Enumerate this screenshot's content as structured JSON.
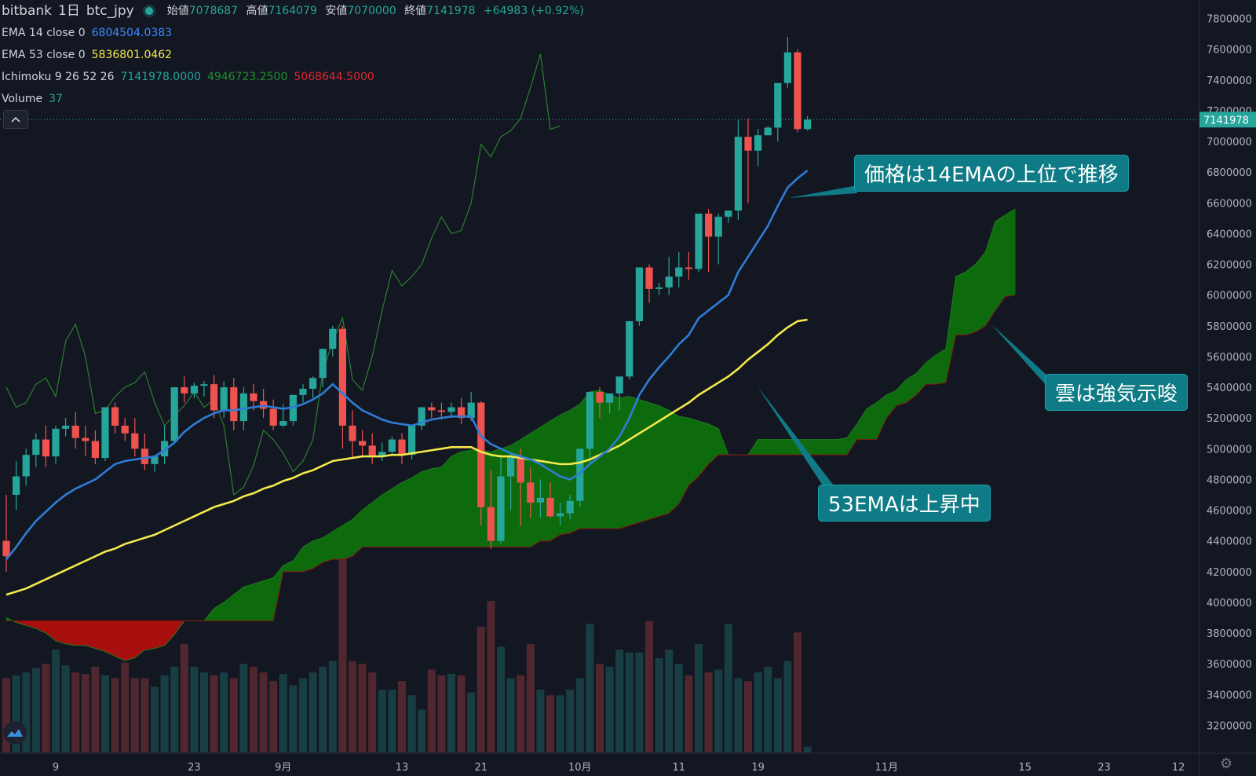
{
  "header": {
    "exchange": "bitbank",
    "interval": "1日",
    "symbol": "btc_jpy",
    "ohlc": [
      {
        "label": "始値",
        "value": "7078687"
      },
      {
        "label": "高値",
        "value": "7164079"
      },
      {
        "label": "安値",
        "value": "7070000"
      },
      {
        "label": "終値",
        "value": "7141978"
      }
    ],
    "change": "+64983 (+0.92%)"
  },
  "indicators": [
    {
      "label": "EMA 14 close 0",
      "values": [
        "6804504.0383"
      ],
      "colors": [
        "#3d8bfd"
      ]
    },
    {
      "label": "EMA 53 close 0",
      "values": [
        "5836801.0462"
      ],
      "colors": [
        "#f5e94b"
      ]
    },
    {
      "label": "Ichimoku 9 26 52 26",
      "values": [
        "7141978.0000",
        "4946723.2500",
        "5068644.5000"
      ],
      "colors": [
        "#26a69a",
        "#1f8f2f",
        "#e0262e"
      ]
    },
    {
      "label": "Volume",
      "values": [
        "37"
      ],
      "colors": [
        "#26a69a"
      ]
    }
  ],
  "collapse_icon": "chevron-up-icon",
  "settings_icon": "gear-icon",
  "logo_icon": "tradingview-logo-icon",
  "annotations": [
    {
      "text": "価格は14EMAの上位で推移"
    },
    {
      "text": "雲は強気示唆"
    },
    {
      "text": "53EMAは上昇中"
    }
  ],
  "colors": {
    "background": "#131722",
    "up": "#26a69a",
    "down": "#ef5350",
    "ema14": "#2f7dd6",
    "ema53": "#f5e94b",
    "cloud_bull": "#0d6b0d",
    "cloud_bear": "#a80f0f",
    "lagging": "#2e7d32",
    "callout": "#0f7b86"
  },
  "chart_data": {
    "type": "candlestick",
    "current_price_label": "7141978",
    "y_axis": {
      "range": [
        3100000,
        7900000
      ],
      "ticks": [
        "7800000",
        "7600000",
        "7400000",
        "7200000",
        "7000000",
        "6800000",
        "6600000",
        "6400000",
        "6200000",
        "6000000",
        "5800000",
        "5600000",
        "5400000",
        "5200000",
        "5000000",
        "4800000",
        "4600000",
        "4400000",
        "4200000",
        "4000000",
        "3800000",
        "3600000",
        "3400000",
        "3200000"
      ]
    },
    "x_axis": {
      "ticks": [
        {
          "label": "9",
          "bar": 5
        },
        {
          "label": "23",
          "bar": 19
        },
        {
          "label": "9月",
          "bar": 28
        },
        {
          "label": "13",
          "bar": 40
        },
        {
          "label": "21",
          "bar": 48
        },
        {
          "label": "10月",
          "bar": 58
        },
        {
          "label": "11",
          "bar": 68
        },
        {
          "label": "19",
          "bar": 76
        },
        {
          "label": "11月",
          "bar": 89
        },
        {
          "label": "15",
          "bar": 103
        },
        {
          "label": "23",
          "bar": 111
        },
        {
          "label": "12",
          "bar": 118.5
        }
      ]
    },
    "candles": [
      [
        4400000,
        4700000,
        4300000,
        4200000
      ],
      [
        4700000,
        4920000,
        4820000,
        4600000
      ],
      [
        4820000,
        5000000,
        4960000,
        4760000
      ],
      [
        4960000,
        5100000,
        5060000,
        4880000
      ],
      [
        5060000,
        5150000,
        4950000,
        4880000
      ],
      [
        4950000,
        5150000,
        5130000,
        4900000
      ],
      [
        5130000,
        5200000,
        5150000,
        5080000
      ],
      [
        5150000,
        5240000,
        5070000,
        5000000
      ],
      [
        5070000,
        5150000,
        5050000,
        4950000
      ],
      [
        5050000,
        5120000,
        4940000,
        4900000
      ],
      [
        4940000,
        5120000,
        5270000,
        4920000
      ],
      [
        5270000,
        5300000,
        5150000,
        5100000
      ],
      [
        5150000,
        5200000,
        5100000,
        5050000
      ],
      [
        5100000,
        5200000,
        5000000,
        4950000
      ],
      [
        5000000,
        5100000,
        4900000,
        4860000
      ],
      [
        4900000,
        4950000,
        4950000,
        4850000
      ],
      [
        4950000,
        5150000,
        5050000,
        4900000
      ],
      [
        5050000,
        5220000,
        5400000,
        5030000
      ],
      [
        5400000,
        5470000,
        5360000,
        5300000
      ],
      [
        5360000,
        5430000,
        5410000,
        5330000
      ],
      [
        5410000,
        5440000,
        5420000,
        5340000
      ],
      [
        5420000,
        5480000,
        5250000,
        5200000
      ],
      [
        5250000,
        5440000,
        5400000,
        5200000
      ],
      [
        5400000,
        5460000,
        5180000,
        5120000
      ],
      [
        5180000,
        5400000,
        5360000,
        5120000
      ],
      [
        5360000,
        5420000,
        5310000,
        5250000
      ],
      [
        5310000,
        5390000,
        5260000,
        5200000
      ],
      [
        5260000,
        5320000,
        5150000,
        5120000
      ],
      [
        5150000,
        5290000,
        5180000,
        5140000
      ],
      [
        5180000,
        5350000,
        5350000,
        5150000
      ],
      [
        5350000,
        5420000,
        5390000,
        5300000
      ],
      [
        5390000,
        5470000,
        5460000,
        5330000
      ],
      [
        5460000,
        5650000,
        5650000,
        5400000
      ],
      [
        5650000,
        5800000,
        5780000,
        5600000
      ],
      [
        5780000,
        5800000,
        5150000,
        5000000
      ],
      [
        5150000,
        5250000,
        5050000,
        4940000
      ],
      [
        5050000,
        5120000,
        5020000,
        4950000
      ],
      [
        5020000,
        5100000,
        4950000,
        4900000
      ],
      [
        4950000,
        5040000,
        4980000,
        4920000
      ],
      [
        4980000,
        5080000,
        5060000,
        4960000
      ],
      [
        5060000,
        5100000,
        4960000,
        4900000
      ],
      [
        4960000,
        4990000,
        5150000,
        4930000
      ],
      [
        5150000,
        5250000,
        5270000,
        5120000
      ],
      [
        5270000,
        5300000,
        5250000,
        5200000
      ],
      [
        5250000,
        5300000,
        5240000,
        5190000
      ],
      [
        5240000,
        5300000,
        5270000,
        5200000
      ],
      [
        5270000,
        5330000,
        5200000,
        5160000
      ],
      [
        5200000,
        5370000,
        5300000,
        5180000
      ],
      [
        5300000,
        5310000,
        4620000,
        4500000
      ],
      [
        4620000,
        4860000,
        4400000,
        4350000
      ],
      [
        4400000,
        4960000,
        4820000,
        4380000
      ],
      [
        4820000,
        4980000,
        4950000,
        4600000
      ],
      [
        4950000,
        5000000,
        4780000,
        4500000
      ],
      [
        4780000,
        4880000,
        4650000,
        4550000
      ],
      [
        4650000,
        4800000,
        4680000,
        4550000
      ],
      [
        4680000,
        4780000,
        4560000,
        4550000
      ],
      [
        4560000,
        4650000,
        4580000,
        4500000
      ],
      [
        4580000,
        4700000,
        4660000,
        4540000
      ],
      [
        4660000,
        4850000,
        5000000,
        4620000
      ],
      [
        5000000,
        5100000,
        5370000,
        4900000
      ],
      [
        5370000,
        5400000,
        5300000,
        5200000
      ],
      [
        5300000,
        5350000,
        5360000,
        5230000
      ],
      [
        5360000,
        5460000,
        5470000,
        5250000
      ],
      [
        5470000,
        5700000,
        5830000,
        5450000
      ],
      [
        5830000,
        6180000,
        6180000,
        5800000
      ],
      [
        6180000,
        6200000,
        6040000,
        5950000
      ],
      [
        6040000,
        6080000,
        6050000,
        6000000
      ],
      [
        6050000,
        6250000,
        6120000,
        6000000
      ],
      [
        6120000,
        6280000,
        6180000,
        6050000
      ],
      [
        6180000,
        6280000,
        6170000,
        6100000
      ],
      [
        6170000,
        6530000,
        6530000,
        6150000
      ],
      [
        6530000,
        6560000,
        6380000,
        6150000
      ],
      [
        6380000,
        6530000,
        6510000,
        6200000
      ],
      [
        6510000,
        6550000,
        6550000,
        6470000
      ],
      [
        6550000,
        7140000,
        7030000,
        6490000
      ],
      [
        7030000,
        7150000,
        6940000,
        6600000
      ],
      [
        6940000,
        7080000,
        7040000,
        6840000
      ],
      [
        7040000,
        7100000,
        7090000,
        7050000
      ],
      [
        7090000,
        7380000,
        7380000,
        7000000
      ],
      [
        7380000,
        7680000,
        7580000,
        7350000
      ],
      [
        7580000,
        7600000,
        7080000,
        7060000
      ],
      [
        7080000,
        7164079,
        7141978,
        7070000
      ]
    ],
    "ema14": [
      4280000,
      4360000,
      4450000,
      4530000,
      4590000,
      4650000,
      4700000,
      4740000,
      4770000,
      4800000,
      4850000,
      4900000,
      4920000,
      4930000,
      4940000,
      4950000,
      4990000,
      5040000,
      5110000,
      5160000,
      5200000,
      5230000,
      5250000,
      5250000,
      5260000,
      5270000,
      5280000,
      5270000,
      5260000,
      5270000,
      5290000,
      5320000,
      5360000,
      5420000,
      5360000,
      5300000,
      5250000,
      5220000,
      5190000,
      5170000,
      5160000,
      5150000,
      5170000,
      5190000,
      5200000,
      5210000,
      5210000,
      5210000,
      5080000,
      5030000,
      5000000,
      4970000,
      4950000,
      4930000,
      4900000,
      4860000,
      4820000,
      4800000,
      4840000,
      4900000,
      4950000,
      5000000,
      5080000,
      5200000,
      5350000,
      5450000,
      5530000,
      5600000,
      5680000,
      5740000,
      5850000,
      5900000,
      5950000,
      6000000,
      6150000,
      6250000,
      6350000,
      6450000,
      6580000,
      6700000,
      6760000,
      6810000
    ],
    "ema53": [
      4050000,
      4070000,
      4090000,
      4120000,
      4150000,
      4180000,
      4210000,
      4240000,
      4270000,
      4300000,
      4330000,
      4350000,
      4380000,
      4400000,
      4420000,
      4440000,
      4470000,
      4500000,
      4530000,
      4560000,
      4590000,
      4620000,
      4640000,
      4660000,
      4690000,
      4710000,
      4740000,
      4760000,
      4790000,
      4810000,
      4840000,
      4860000,
      4890000,
      4920000,
      4930000,
      4940000,
      4950000,
      4950000,
      4950000,
      4960000,
      4960000,
      4970000,
      4980000,
      4990000,
      5000000,
      5010000,
      5010000,
      5010000,
      4980000,
      4960000,
      4950000,
      4950000,
      4940000,
      4930000,
      4920000,
      4910000,
      4900000,
      4900000,
      4910000,
      4930000,
      4960000,
      4990000,
      5020000,
      5060000,
      5100000,
      5140000,
      5180000,
      5220000,
      5260000,
      5300000,
      5350000,
      5390000,
      5430000,
      5470000,
      5520000,
      5580000,
      5630000,
      5680000,
      5740000,
      5790000,
      5830000,
      5840000
    ],
    "lagging_span": [
      5400000,
      5270000,
      5300000,
      5420000,
      5460000,
      5340000,
      5700000,
      5810000,
      5600000,
      5230000,
      5250000,
      5340000,
      5400000,
      5430000,
      5500000,
      5300000,
      5150000,
      5220000,
      5280000,
      5370000,
      5270000,
      5320000,
      5150000,
      4700000,
      4750000,
      4890000,
      5120000,
      5060000,
      4970000,
      4850000,
      4920000,
      5060000,
      5500000,
      5700000,
      5850000,
      5450000,
      5380000,
      5600000,
      5900000,
      6160000,
      6060000,
      6120000,
      6200000,
      6370000,
      6510000,
      6400000,
      6420000,
      6600000,
      6980000,
      6900000,
      7030000,
      7070000,
      7150000,
      7350000,
      7570000,
      7080000,
      7100000
    ],
    "cloud": {
      "start_bar": 0,
      "span_a": [
        3900000,
        3870000,
        3850000,
        3830000,
        3800000,
        3750000,
        3730000,
        3720000,
        3720000,
        3700000,
        3680000,
        3650000,
        3620000,
        3640000,
        3690000,
        3700000,
        3720000,
        3790000,
        3880000,
        3880000,
        3880000,
        3960000,
        4000000,
        4050000,
        4100000,
        4120000,
        4140000,
        4160000,
        4240000,
        4270000,
        4360000,
        4400000,
        4420000,
        4460000,
        4500000,
        4540000,
        4600000,
        4650000,
        4700000,
        4740000,
        4780000,
        4810000,
        4850000,
        4870000,
        4880000,
        4950000,
        4980000,
        4990000,
        4990000,
        4980000,
        5000000,
        5020000,
        5060000,
        5100000,
        5140000,
        5180000,
        5220000,
        5250000,
        5290000,
        5370000,
        5380000,
        5350000,
        5330000,
        5340000,
        5320000,
        5300000,
        5280000,
        5250000,
        5210000,
        5200000,
        5180000,
        5160000,
        5130000,
        4960000,
        4960000,
        4960000,
        5060000,
        5060000,
        5060000,
        5060000,
        5060000,
        5060000,
        5060000,
        5060000,
        5060000,
        5070000,
        5160000,
        5260000,
        5300000,
        5350000,
        5380000,
        5450000,
        5490000,
        5560000,
        5610000,
        5650000,
        6120000,
        6150000,
        6200000,
        6280000,
        6480000,
        6520000,
        6560000
      ],
      "span_b": [
        3880000,
        3880000,
        3880000,
        3880000,
        3880000,
        3880000,
        3880000,
        3880000,
        3880000,
        3880000,
        3880000,
        3880000,
        3880000,
        3880000,
        3880000,
        3880000,
        3880000,
        3880000,
        3880000,
        3880000,
        3880000,
        3880000,
        3880000,
        3880000,
        3880000,
        3880000,
        3880000,
        3880000,
        4200000,
        4200000,
        4200000,
        4220000,
        4260000,
        4280000,
        4280000,
        4300000,
        4360000,
        4360000,
        4360000,
        4360000,
        4360000,
        4360000,
        4360000,
        4360000,
        4360000,
        4360000,
        4360000,
        4360000,
        4360000,
        4360000,
        4360000,
        4360000,
        4360000,
        4360000,
        4400000,
        4400000,
        4440000,
        4450000,
        4480000,
        4480000,
        4480000,
        4480000,
        4480000,
        4500000,
        4520000,
        4540000,
        4560000,
        4580000,
        4640000,
        4760000,
        4820000,
        4900000,
        4960000,
        4960000,
        4960000,
        4960000,
        4960000,
        4960000,
        4960000,
        4960000,
        4960000,
        4960000,
        4960000,
        4960000,
        4960000,
        4960000,
        5060000,
        5060000,
        5060000,
        5200000,
        5280000,
        5300000,
        5350000,
        5420000,
        5420000,
        5430000,
        5740000,
        5740000,
        5760000,
        5800000,
        5900000,
        5990000,
        6000000
      ]
    },
    "volume": {
      "range": [
        0,
        1100
      ],
      "values": [
        520,
        540,
        560,
        590,
        620,
        720,
        610,
        560,
        550,
        600,
        540,
        520,
        630,
        520,
        520,
        460,
        540,
        600,
        760,
        600,
        560,
        540,
        560,
        520,
        620,
        600,
        560,
        500,
        550,
        470,
        520,
        560,
        600,
        640,
        1400,
        640,
        620,
        560,
        440,
        440,
        500,
        400,
        300,
        580,
        540,
        550,
        540,
        420,
        880,
        1060,
        740,
        520,
        540,
        760,
        440,
        400,
        400,
        440,
        520,
        900,
        620,
        600,
        720,
        700,
        700,
        920,
        660,
        720,
        620,
        540,
        760,
        560,
        580,
        900,
        520,
        500,
        560,
        600,
        520,
        640,
        840,
        40
      ]
    }
  }
}
